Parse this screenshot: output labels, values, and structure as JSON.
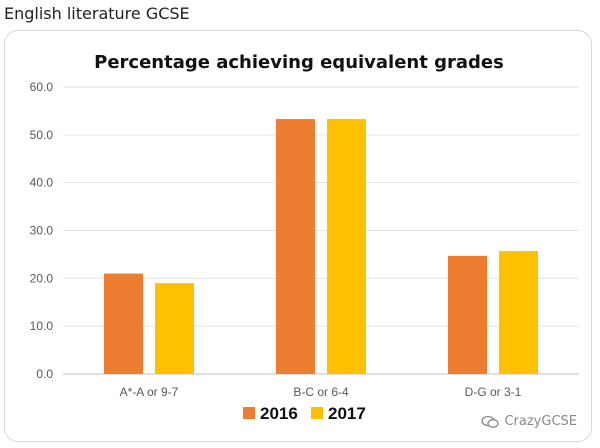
{
  "page": {
    "heading": "English literature GCSE"
  },
  "watermark": {
    "text": "CrazyGCSE",
    "icon": "chat-bubbles-icon"
  },
  "chart_data": {
    "type": "bar",
    "title": "Percentage achieving equivalent grades",
    "categories": [
      "A*-A or 9-7",
      "B-C or 6-4",
      "D-G or 3-1"
    ],
    "series": [
      {
        "name": "2016",
        "color": "#ed7d31",
        "values": [
          21.0,
          53.3,
          24.7
        ]
      },
      {
        "name": "2017",
        "color": "#ffc000",
        "values": [
          19.0,
          53.3,
          25.7
        ]
      }
    ],
    "ylim": [
      0,
      60
    ],
    "yticks": [
      "0.0",
      "10.0",
      "20.0",
      "30.0",
      "40.0",
      "50.0",
      "60.0"
    ],
    "grid": true,
    "legend": "bottom"
  }
}
